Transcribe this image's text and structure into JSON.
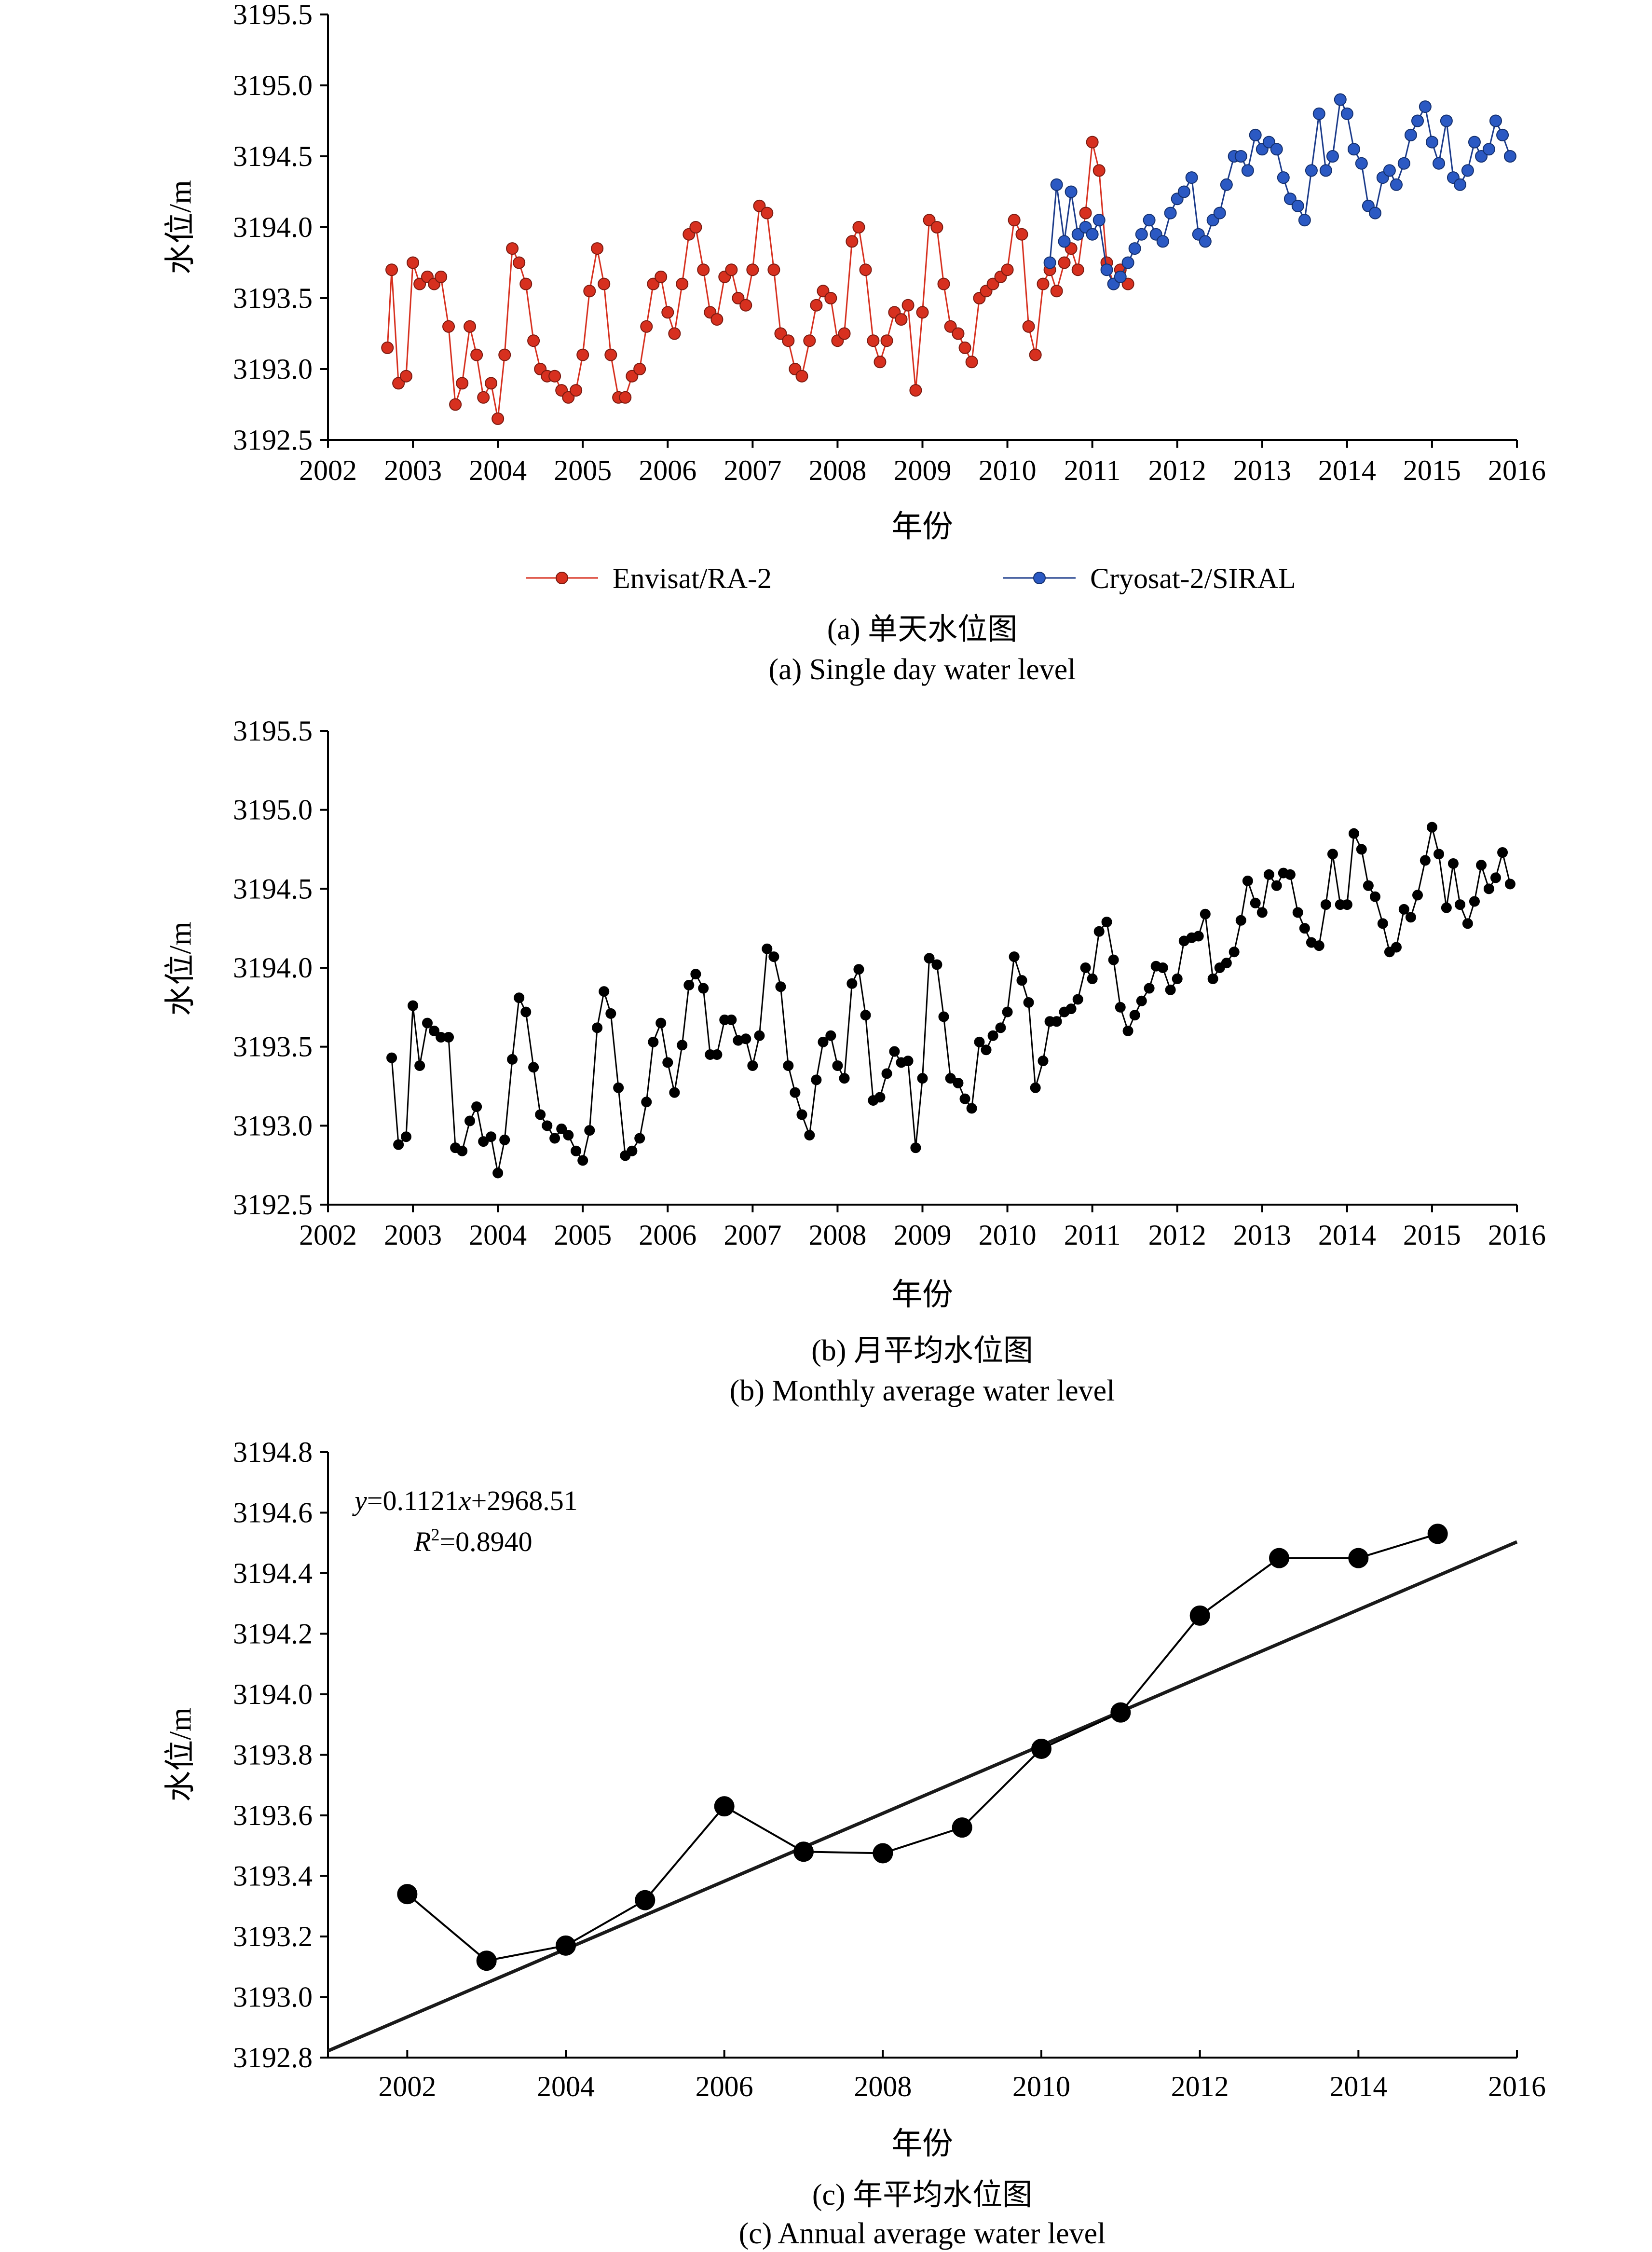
{
  "chart_data": [
    {
      "type": "line",
      "panel": "a",
      "title": "",
      "xlabel": "年份",
      "ylabel": "水位/m",
      "xlim": [
        2002,
        2016
      ],
      "ylim": [
        3192.5,
        3195.5
      ],
      "xticks": [
        "2002",
        "2003",
        "2004",
        "2005",
        "2006",
        "2007",
        "2008",
        "2009",
        "2010",
        "2011",
        "2012",
        "2013",
        "2014",
        "2015",
        "2016"
      ],
      "yticks": [
        "3192.5",
        "3193.0",
        "3193.5",
        "3194.0",
        "3194.5",
        "3195.0",
        "3195.5"
      ],
      "caption_cn": "(a) 单天水位图",
      "caption_en": "(a) Single day water level",
      "legend": [
        "Envisat/RA-2",
        "Cryosat-2/SIRAL"
      ],
      "series": [
        {
          "name": "Envisat/RA-2",
          "color": "#d7301f",
          "x": [
            2002.7,
            2002.75,
            2002.83,
            2002.92,
            2003.0,
            2003.08,
            2003.17,
            2003.25,
            2003.33,
            2003.42,
            2003.5,
            2003.58,
            2003.67,
            2003.75,
            2003.83,
            2003.92,
            2004.0,
            2004.08,
            2004.17,
            2004.25,
            2004.33,
            2004.42,
            2004.5,
            2004.58,
            2004.67,
            2004.75,
            2004.83,
            2004.92,
            2005.0,
            2005.08,
            2005.17,
            2005.25,
            2005.33,
            2005.42,
            2005.5,
            2005.58,
            2005.67,
            2005.75,
            2005.83,
            2005.92,
            2006.0,
            2006.08,
            2006.17,
            2006.25,
            2006.33,
            2006.42,
            2006.5,
            2006.58,
            2006.67,
            2006.75,
            2006.83,
            2006.92,
            2007.0,
            2007.08,
            2007.17,
            2007.25,
            2007.33,
            2007.42,
            2007.5,
            2007.58,
            2007.67,
            2007.75,
            2007.83,
            2007.92,
            2008.0,
            2008.08,
            2008.17,
            2008.25,
            2008.33,
            2008.42,
            2008.5,
            2008.58,
            2008.67,
            2008.75,
            2008.83,
            2008.92,
            2009.0,
            2009.08,
            2009.17,
            2009.25,
            2009.33,
            2009.42,
            2009.5,
            2009.58,
            2009.67,
            2009.75,
            2009.83,
            2009.92,
            2010.0,
            2010.08,
            2010.17,
            2010.25,
            2010.33,
            2010.42,
            2010.5,
            2010.58,
            2010.67,
            2010.75,
            2010.83,
            2010.92,
            2011.0,
            2011.08,
            2011.17,
            2011.25,
            2011.33,
            2011.42
          ],
          "y": [
            3193.15,
            3193.7,
            3192.9,
            3192.95,
            3193.75,
            3193.6,
            3193.65,
            3193.6,
            3193.65,
            3193.3,
            3192.75,
            3192.9,
            3193.3,
            3193.1,
            3192.8,
            3192.9,
            3192.65,
            3193.1,
            3193.85,
            3193.75,
            3193.6,
            3193.2,
            3193.0,
            3192.95,
            3192.95,
            3192.85,
            3192.8,
            3192.85,
            3193.1,
            3193.55,
            3193.85,
            3193.6,
            3193.1,
            3192.8,
            3192.8,
            3192.95,
            3193.0,
            3193.3,
            3193.6,
            3193.65,
            3193.4,
            3193.25,
            3193.6,
            3193.95,
            3194.0,
            3193.7,
            3193.4,
            3193.35,
            3193.65,
            3193.7,
            3193.5,
            3193.45,
            3193.7,
            3194.15,
            3194.1,
            3193.7,
            3193.25,
            3193.2,
            3193.0,
            3192.95,
            3193.2,
            3193.45,
            3193.55,
            3193.5,
            3193.2,
            3193.25,
            3193.9,
            3194.0,
            3193.7,
            3193.2,
            3193.05,
            3193.2,
            3193.4,
            3193.35,
            3193.45,
            3192.85,
            3193.4,
            3194.05,
            3194.0,
            3193.6,
            3193.3,
            3193.25,
            3193.15,
            3193.05,
            3193.5,
            3193.55,
            3193.6,
            3193.65,
            3193.7,
            3194.05,
            3193.95,
            3193.3,
            3193.1,
            3193.6,
            3193.7,
            3193.55,
            3193.75,
            3193.85,
            3193.7,
            3194.1,
            3194.6,
            3194.4,
            3193.75,
            3193.6,
            3193.7,
            3193.6
          ]
        },
        {
          "name": "Cryosat-2/SIRAL",
          "color": "#2b59c3",
          "x": [
            2010.5,
            2010.58,
            2010.67,
            2010.75,
            2010.83,
            2010.92,
            2011.0,
            2011.08,
            2011.17,
            2011.25,
            2011.33,
            2011.42,
            2011.5,
            2011.58,
            2011.67,
            2011.75,
            2011.83,
            2011.92,
            2012.0,
            2012.08,
            2012.17,
            2012.25,
            2012.33,
            2012.42,
            2012.5,
            2012.58,
            2012.67,
            2012.75,
            2012.83,
            2012.92,
            2013.0,
            2013.08,
            2013.17,
            2013.25,
            2013.33,
            2013.42,
            2013.5,
            2013.58,
            2013.67,
            2013.75,
            2013.83,
            2013.92,
            2014.0,
            2014.08,
            2014.17,
            2014.25,
            2014.33,
            2014.42,
            2014.5,
            2014.58,
            2014.67,
            2014.75,
            2014.83,
            2014.92,
            2015.0,
            2015.08,
            2015.17,
            2015.25,
            2015.33,
            2015.42,
            2015.5,
            2015.58,
            2015.67,
            2015.75,
            2015.83,
            2015.92
          ],
          "y": [
            3193.75,
            3194.3,
            3193.9,
            3194.25,
            3193.95,
            3194.0,
            3193.95,
            3194.05,
            3193.7,
            3193.6,
            3193.65,
            3193.75,
            3193.85,
            3193.95,
            3194.05,
            3193.95,
            3193.9,
            3194.1,
            3194.2,
            3194.25,
            3194.35,
            3193.95,
            3193.9,
            3194.05,
            3194.1,
            3194.3,
            3194.5,
            3194.5,
            3194.4,
            3194.65,
            3194.55,
            3194.6,
            3194.55,
            3194.35,
            3194.2,
            3194.15,
            3194.05,
            3194.4,
            3194.8,
            3194.4,
            3194.5,
            3194.9,
            3194.8,
            3194.55,
            3194.45,
            3194.15,
            3194.1,
            3194.35,
            3194.4,
            3194.3,
            3194.45,
            3194.65,
            3194.75,
            3194.85,
            3194.6,
            3194.45,
            3194.75,
            3194.35,
            3194.3,
            3194.4,
            3194.6,
            3194.5,
            3194.55,
            3194.75,
            3194.65,
            3194.5
          ]
        }
      ]
    },
    {
      "type": "line",
      "panel": "b",
      "title": "",
      "xlabel": "年份",
      "ylabel": "水位/m",
      "xlim": [
        2002,
        2016
      ],
      "ylim": [
        3192.5,
        3195.5
      ],
      "xticks": [
        "2002",
        "2003",
        "2004",
        "2005",
        "2006",
        "2007",
        "2008",
        "2009",
        "2010",
        "2011",
        "2012",
        "2013",
        "2014",
        "2015",
        "2016"
      ],
      "yticks": [
        "3192.5",
        "3193.0",
        "3193.5",
        "3194.0",
        "3194.5",
        "3195.0",
        "3195.5"
      ],
      "caption_cn": "(b) 月平均水位图",
      "caption_en": "(b) Monthly average water level",
      "series": [
        {
          "name": "Monthly average",
          "color": "#000000",
          "x": [
            2002.75,
            2002.83,
            2002.92,
            2003.0,
            2003.08,
            2003.17,
            2003.25,
            2003.33,
            2003.42,
            2003.5,
            2003.58,
            2003.67,
            2003.75,
            2003.83,
            2003.92,
            2004.0,
            2004.08,
            2004.17,
            2004.25,
            2004.33,
            2004.42,
            2004.5,
            2004.58,
            2004.67,
            2004.75,
            2004.83,
            2004.92,
            2005.0,
            2005.08,
            2005.17,
            2005.25,
            2005.33,
            2005.42,
            2005.5,
            2005.58,
            2005.67,
            2005.75,
            2005.83,
            2005.92,
            2006.0,
            2006.08,
            2006.17,
            2006.25,
            2006.33,
            2006.42,
            2006.5,
            2006.58,
            2006.67,
            2006.75,
            2006.83,
            2006.92,
            2007.0,
            2007.08,
            2007.17,
            2007.25,
            2007.33,
            2007.42,
            2007.5,
            2007.58,
            2007.67,
            2007.75,
            2007.83,
            2007.92,
            2008.0,
            2008.08,
            2008.17,
            2008.25,
            2008.33,
            2008.42,
            2008.5,
            2008.58,
            2008.67,
            2008.75,
            2008.83,
            2008.92,
            2009.0,
            2009.08,
            2009.17,
            2009.25,
            2009.33,
            2009.42,
            2009.5,
            2009.58,
            2009.67,
            2009.75,
            2009.83,
            2009.92,
            2010.0,
            2010.08,
            2010.17,
            2010.25,
            2010.33,
            2010.42,
            2010.5,
            2010.58,
            2010.67,
            2010.75,
            2010.83,
            2010.92,
            2011.0,
            2011.08,
            2011.17,
            2011.25,
            2011.33,
            2011.42,
            2011.5,
            2011.58,
            2011.67,
            2011.75,
            2011.83,
            2011.92,
            2012.0,
            2012.08,
            2012.17,
            2012.25,
            2012.33,
            2012.42,
            2012.5,
            2012.58,
            2012.67,
            2012.75,
            2012.83,
            2012.92,
            2013.0,
            2013.08,
            2013.17,
            2013.25,
            2013.33,
            2013.42,
            2013.5,
            2013.58,
            2013.67,
            2013.75,
            2013.83,
            2013.92,
            2014.0,
            2014.08,
            2014.17,
            2014.25,
            2014.33,
            2014.42,
            2014.5,
            2014.58,
            2014.67,
            2014.75,
            2014.83,
            2014.92,
            2015.0,
            2015.08,
            2015.17,
            2015.25,
            2015.33,
            2015.42,
            2015.5,
            2015.58,
            2015.67,
            2015.75,
            2015.83,
            2015.92
          ],
          "y": [
            3193.43,
            3192.88,
            3192.93,
            3193.76,
            3193.38,
            3193.65,
            3193.6,
            3193.56,
            3193.56,
            3192.86,
            3192.84,
            3193.03,
            3193.12,
            3192.9,
            3192.93,
            3192.7,
            3192.91,
            3193.42,
            3193.81,
            3193.72,
            3193.37,
            3193.07,
            3193.0,
            3192.92,
            3192.98,
            3192.94,
            3192.84,
            3192.78,
            3192.97,
            3193.62,
            3193.85,
            3193.71,
            3193.24,
            3192.81,
            3192.84,
            3192.92,
            3193.15,
            3193.53,
            3193.65,
            3193.4,
            3193.21,
            3193.51,
            3193.89,
            3193.96,
            3193.87,
            3193.45,
            3193.45,
            3193.67,
            3193.67,
            3193.54,
            3193.55,
            3193.38,
            3193.57,
            3194.12,
            3194.07,
            3193.88,
            3193.38,
            3193.21,
            3193.07,
            3192.94,
            3193.29,
            3193.53,
            3193.57,
            3193.38,
            3193.3,
            3193.9,
            3193.99,
            3193.7,
            3193.16,
            3193.18,
            3193.33,
            3193.47,
            3193.4,
            3193.41,
            3192.86,
            3193.3,
            3194.06,
            3194.02,
            3193.69,
            3193.3,
            3193.27,
            3193.17,
            3193.11,
            3193.53,
            3193.48,
            3193.57,
            3193.62,
            3193.72,
            3194.07,
            3193.92,
            3193.78,
            3193.24,
            3193.41,
            3193.66,
            3193.66,
            3193.72,
            3193.74,
            3193.8,
            3194.0,
            3193.93,
            3194.23,
            3194.29,
            3194.05,
            3193.75,
            3193.6,
            3193.7,
            3193.79,
            3193.87,
            3194.01,
            3194.0,
            3193.86,
            3193.93,
            3194.17,
            3194.19,
            3194.2,
            3194.34,
            3193.93,
            3194.0,
            3194.03,
            3194.1,
            3194.3,
            3194.55,
            3194.41,
            3194.35,
            3194.59,
            3194.52,
            3194.6,
            3194.59,
            3194.35,
            3194.25,
            3194.16,
            3194.14,
            3194.4,
            3194.72,
            3194.4,
            3194.4,
            3194.85,
            3194.75,
            3194.52,
            3194.45,
            3194.28,
            3194.1,
            3194.13,
            3194.37,
            3194.32,
            3194.46,
            3194.68,
            3194.89,
            3194.72,
            3194.38,
            3194.66,
            3194.4,
            3194.28,
            3194.42,
            3194.65,
            3194.5,
            3194.57,
            3194.73,
            3194.53
          ]
        }
      ]
    },
    {
      "type": "line",
      "panel": "c",
      "title": "",
      "xlabel": "年份",
      "ylabel": "水位/m",
      "xlim": [
        2001,
        2016
      ],
      "ylim": [
        3192.8,
        3194.8
      ],
      "xticks": [
        "2002",
        "2004",
        "2006",
        "2008",
        "2010",
        "2012",
        "2014",
        "2016"
      ],
      "yticks": [
        "3192.8",
        "3193.0",
        "3193.2",
        "3193.4",
        "3193.6",
        "3193.8",
        "3194.0",
        "3194.2",
        "3194.4",
        "3194.6",
        "3194.8"
      ],
      "caption_cn": "(c) 年平均水位图",
      "caption_en": "(c) Annual average water level",
      "equation": {
        "y_var": "y",
        "x_var": "x",
        "slope": "0.1121",
        "intercept": "2968.51",
        "r2_label": "R",
        "r2_sup": "2",
        "r2_value": "=0.8940"
      },
      "trendline": {
        "slope": 0.1121,
        "intercept": 2968.51
      },
      "series": [
        {
          "name": "Annual average",
          "color": "#000000",
          "x": [
            2002,
            2003,
            2004,
            2005,
            2006,
            2007,
            2008,
            2009,
            2010,
            2011,
            2012,
            2013,
            2014,
            2015
          ],
          "y": [
            3193.34,
            3193.12,
            3193.17,
            3193.32,
            3193.63,
            3193.48,
            3193.475,
            3193.56,
            3193.82,
            3193.94,
            3194.26,
            3194.45,
            3194.45,
            3194.53
          ]
        }
      ]
    }
  ]
}
